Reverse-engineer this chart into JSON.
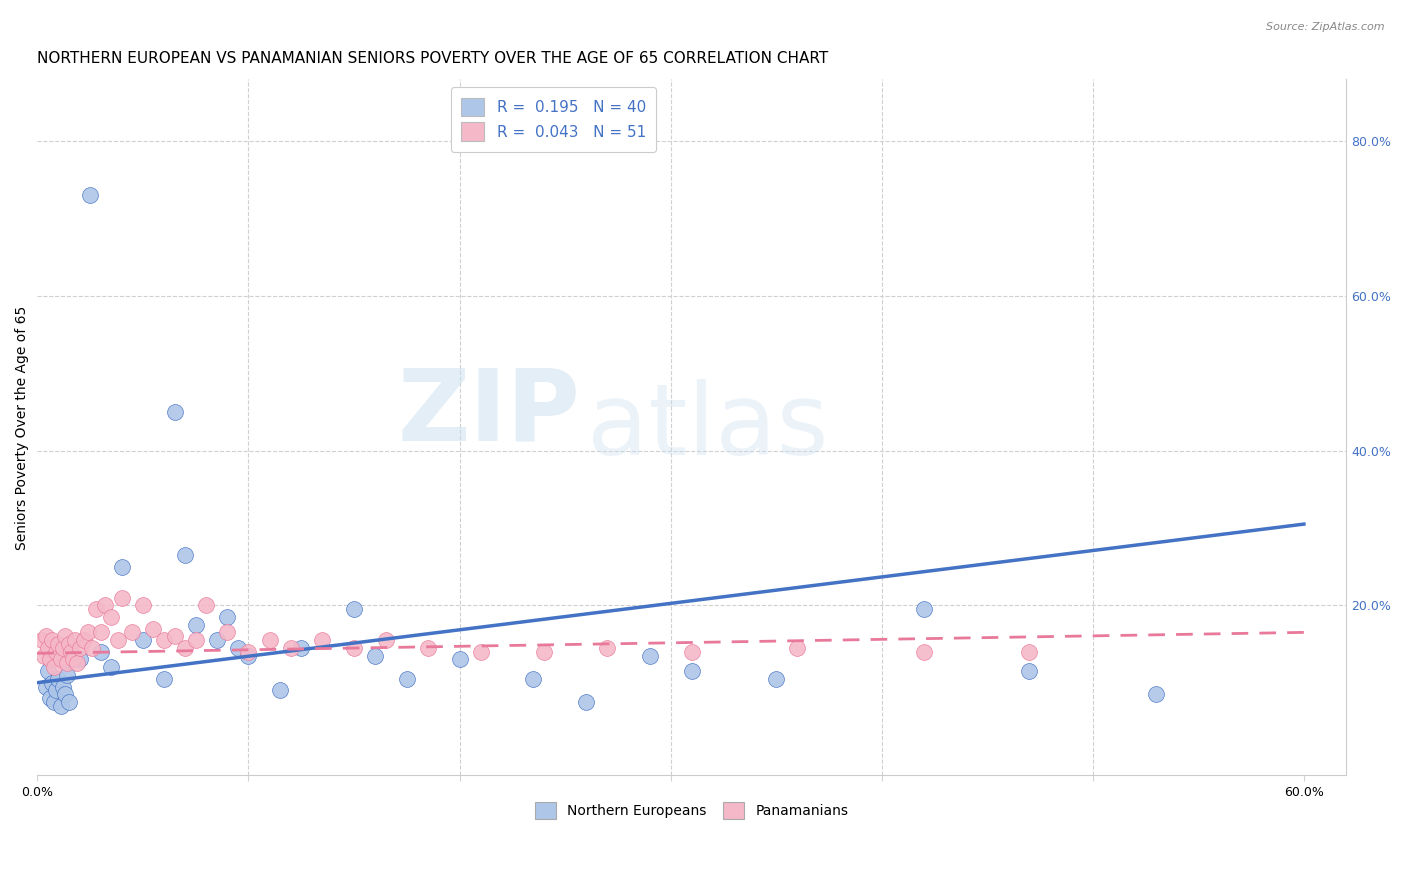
{
  "title": "NORTHERN EUROPEAN VS PANAMANIAN SENIORS POVERTY OVER THE AGE OF 65 CORRELATION CHART",
  "source": "Source: ZipAtlas.com",
  "ylabel": "Seniors Poverty Over the Age of 65",
  "xlim": [
    0.0,
    0.62
  ],
  "ylim": [
    -0.02,
    0.88
  ],
  "xticks": [
    0.0,
    0.1,
    0.2,
    0.3,
    0.4,
    0.5,
    0.6
  ],
  "xtick_labels": [
    "0.0%",
    "",
    "",
    "",
    "",
    "",
    "60.0%"
  ],
  "yticks_right": [
    0.0,
    0.2,
    0.4,
    0.6,
    0.8
  ],
  "ytick_right_labels": [
    "",
    "20.0%",
    "40.0%",
    "60.0%",
    "80.0%"
  ],
  "r_northern": 0.195,
  "n_northern": 40,
  "r_panamanian": 0.043,
  "n_panamanian": 51,
  "northern_color": "#aec6e8",
  "panamanian_color": "#f4b8c8",
  "trendline_northern_color": "#4472c4",
  "trendline_panamanian_color": "#e8799a",
  "trendline_ne_x0": 0.0,
  "trendline_ne_y0": 0.1,
  "trendline_ne_x1": 0.6,
  "trendline_ne_y1": 0.305,
  "trendline_pan_x0": 0.0,
  "trendline_pan_y0": 0.138,
  "trendline_pan_x1": 0.6,
  "trendline_pan_y1": 0.165,
  "northern_x": [
    0.004,
    0.005,
    0.006,
    0.007,
    0.008,
    0.009,
    0.01,
    0.011,
    0.012,
    0.013,
    0.014,
    0.015,
    0.02,
    0.025,
    0.03,
    0.035,
    0.04,
    0.05,
    0.06,
    0.065,
    0.07,
    0.075,
    0.085,
    0.09,
    0.095,
    0.1,
    0.115,
    0.125,
    0.15,
    0.16,
    0.175,
    0.2,
    0.235,
    0.26,
    0.29,
    0.31,
    0.35,
    0.42,
    0.47,
    0.53
  ],
  "northern_y": [
    0.095,
    0.115,
    0.08,
    0.1,
    0.075,
    0.09,
    0.105,
    0.07,
    0.095,
    0.085,
    0.11,
    0.075,
    0.13,
    0.73,
    0.14,
    0.12,
    0.25,
    0.155,
    0.105,
    0.45,
    0.265,
    0.175,
    0.155,
    0.185,
    0.145,
    0.135,
    0.09,
    0.145,
    0.195,
    0.135,
    0.105,
    0.13,
    0.105,
    0.075,
    0.135,
    0.115,
    0.105,
    0.195,
    0.115,
    0.085
  ],
  "panamanian_x": [
    0.002,
    0.003,
    0.004,
    0.005,
    0.006,
    0.007,
    0.008,
    0.009,
    0.01,
    0.011,
    0.012,
    0.013,
    0.014,
    0.015,
    0.016,
    0.017,
    0.018,
    0.019,
    0.02,
    0.022,
    0.024,
    0.026,
    0.028,
    0.03,
    0.032,
    0.035,
    0.038,
    0.04,
    0.045,
    0.05,
    0.055,
    0.06,
    0.065,
    0.07,
    0.075,
    0.08,
    0.09,
    0.1,
    0.11,
    0.12,
    0.135,
    0.15,
    0.165,
    0.185,
    0.21,
    0.24,
    0.27,
    0.31,
    0.36,
    0.42,
    0.47
  ],
  "panamanian_y": [
    0.155,
    0.135,
    0.16,
    0.145,
    0.13,
    0.155,
    0.12,
    0.14,
    0.15,
    0.13,
    0.145,
    0.16,
    0.125,
    0.15,
    0.14,
    0.13,
    0.155,
    0.125,
    0.145,
    0.155,
    0.165,
    0.145,
    0.195,
    0.165,
    0.2,
    0.185,
    0.155,
    0.21,
    0.165,
    0.2,
    0.17,
    0.155,
    0.16,
    0.145,
    0.155,
    0.2,
    0.165,
    0.14,
    0.155,
    0.145,
    0.155,
    0.145,
    0.155,
    0.145,
    0.14,
    0.14,
    0.145,
    0.14,
    0.145,
    0.14,
    0.14
  ],
  "watermark_zip": "ZIP",
  "watermark_atlas": "atlas",
  "title_fontsize": 11,
  "axis_label_fontsize": 10,
  "tick_fontsize": 9
}
